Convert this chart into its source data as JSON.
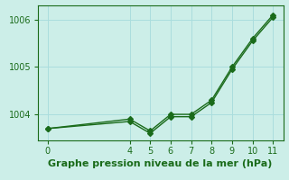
{
  "xlabel": "Graphe pression niveau de la mer (hPa)",
  "background_color": "#cceee8",
  "grid_color": "#aadddd",
  "line_color": "#1a6b1a",
  "series1_x": [
    0,
    4,
    5,
    6,
    7,
    8,
    9,
    10,
    11
  ],
  "series1_y": [
    1003.7,
    1003.9,
    1003.65,
    1004.0,
    1004.0,
    1004.3,
    1005.0,
    1005.6,
    1006.1
  ],
  "series2_x": [
    0,
    4,
    5,
    6,
    7,
    8,
    9,
    10,
    11
  ],
  "series2_y": [
    1003.7,
    1003.85,
    1003.6,
    1003.95,
    1003.95,
    1004.25,
    1004.95,
    1005.55,
    1006.05
  ],
  "ylim": [
    1003.45,
    1006.3
  ],
  "xlim": [
    -0.5,
    11.5
  ],
  "yticks": [
    1004,
    1005,
    1006
  ],
  "xticks": [
    0,
    4,
    5,
    6,
    7,
    8,
    9,
    10,
    11
  ],
  "marker": "D",
  "marker_size": 3,
  "line_width": 1.0,
  "tick_fontsize": 7,
  "xlabel_fontsize": 8
}
